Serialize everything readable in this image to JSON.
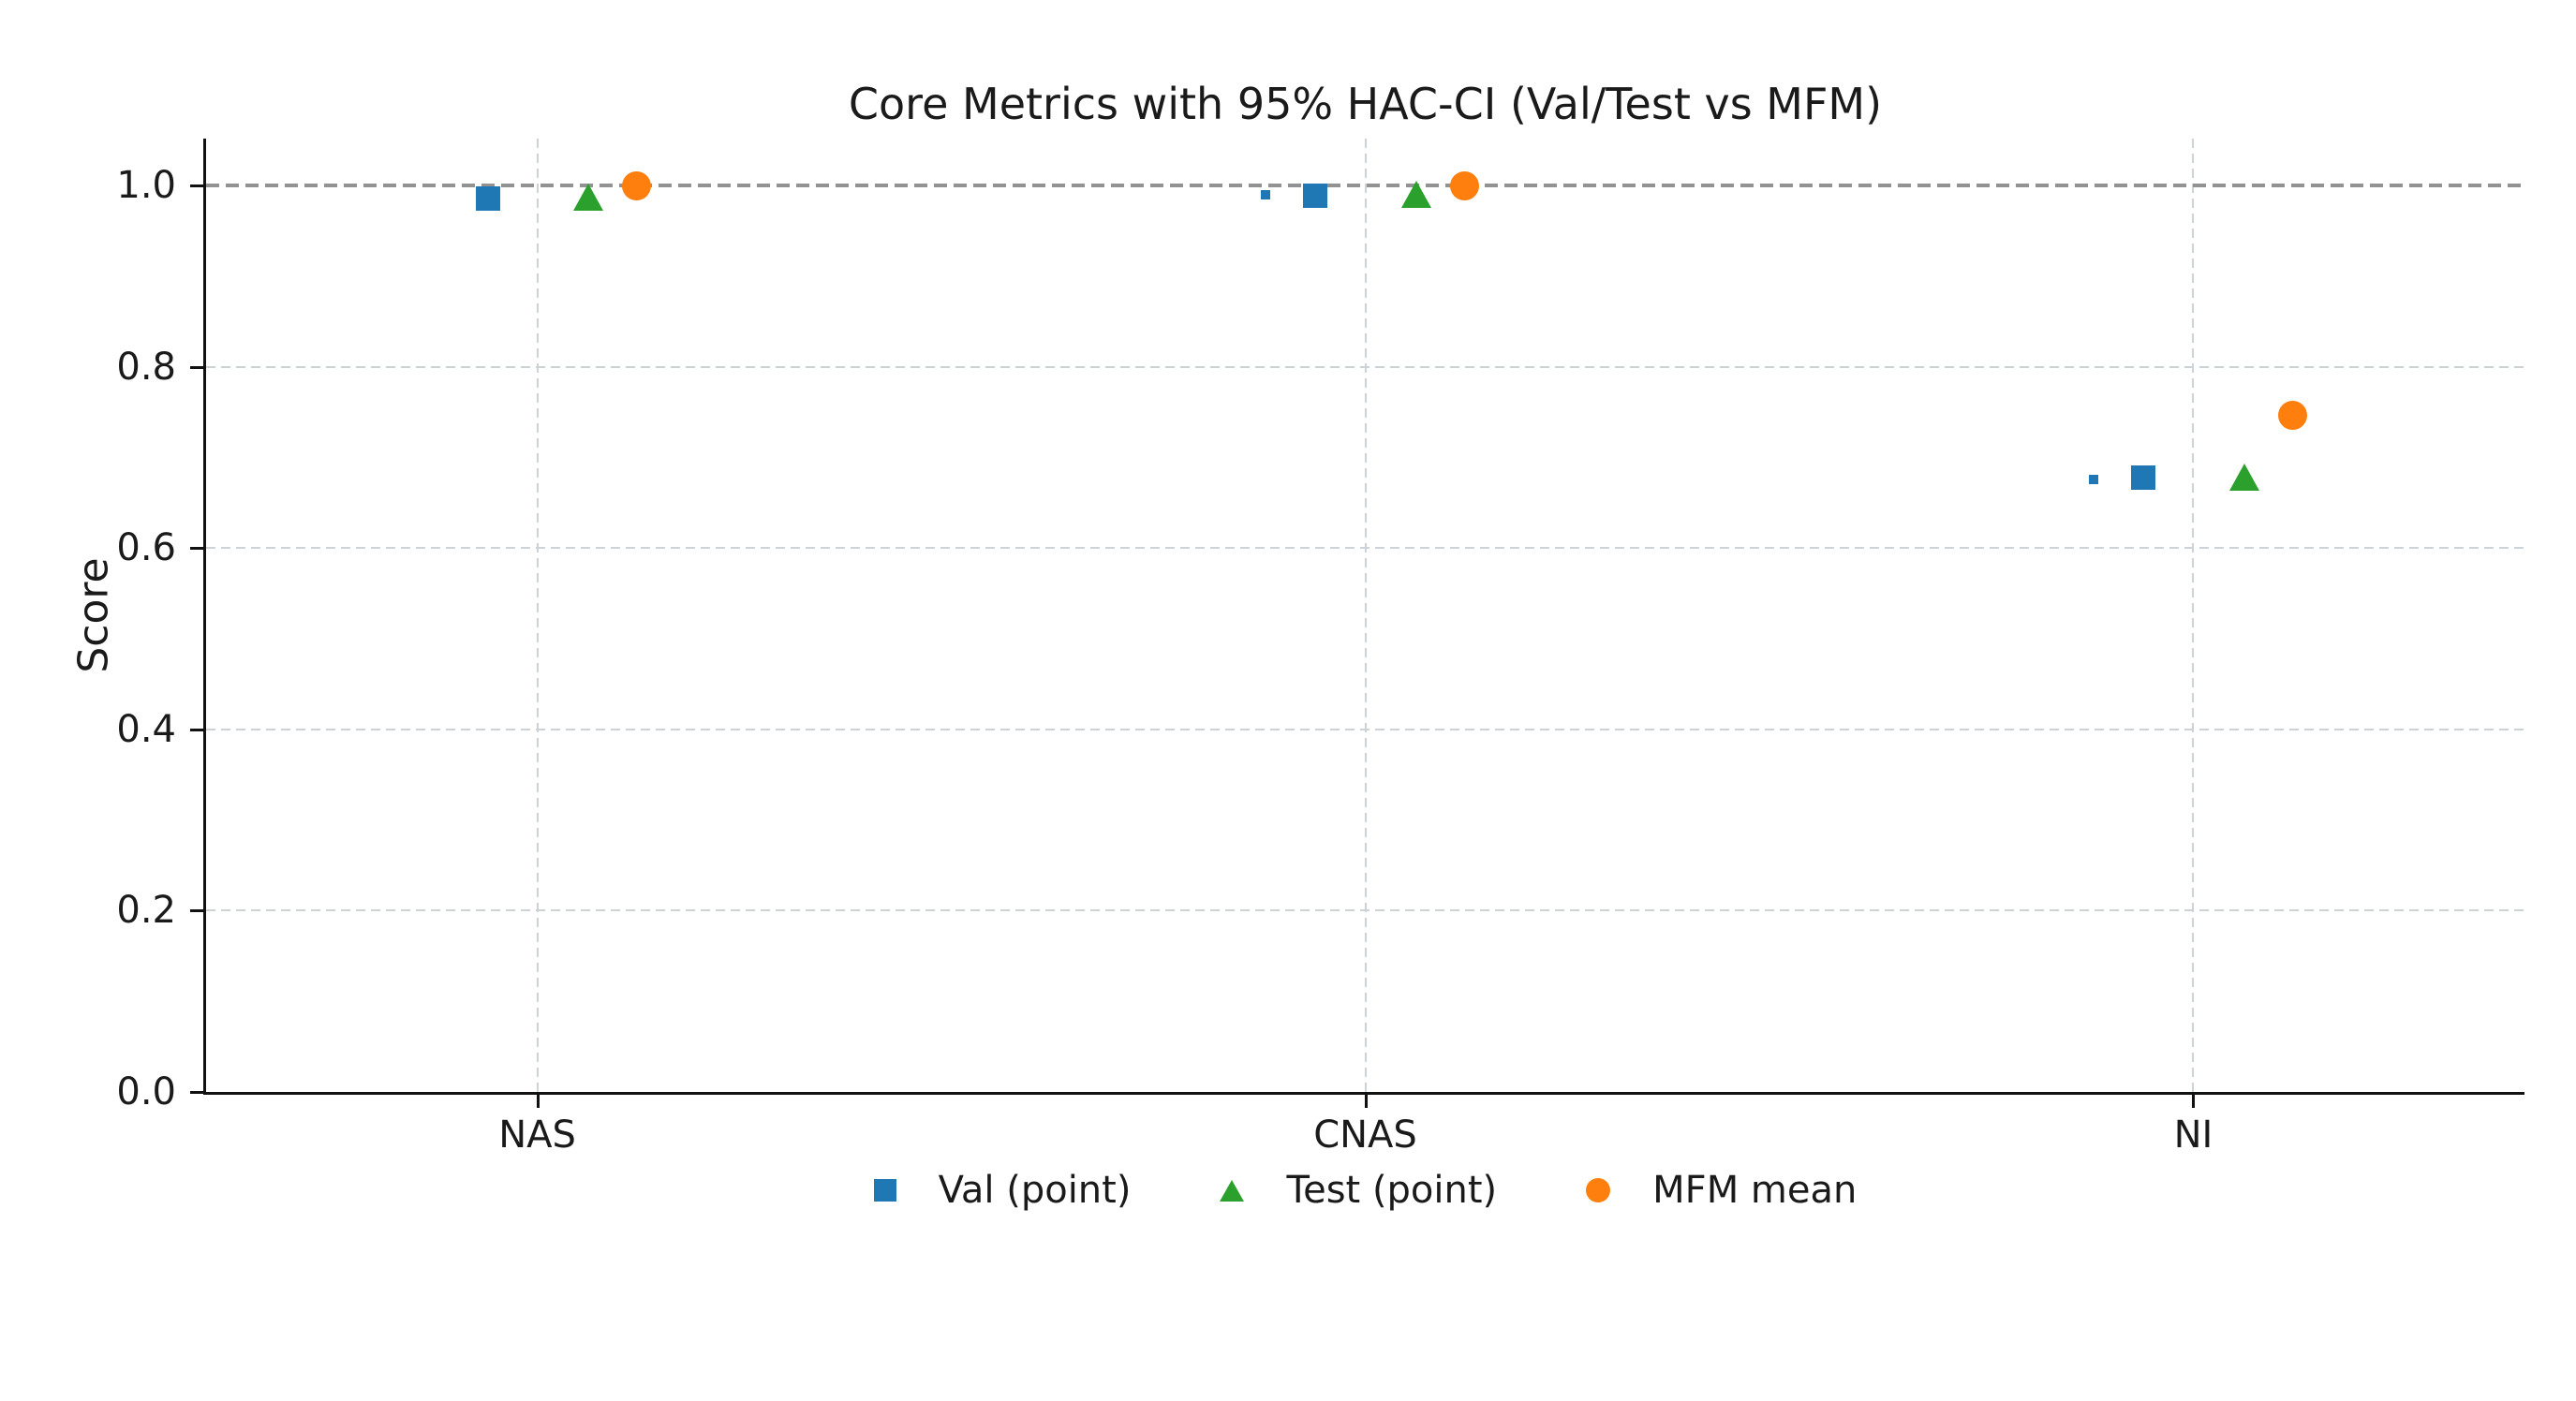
{
  "chart_data": {
    "type": "scatter",
    "title": "Core Metrics with 95% HAC-CI (Val/Test vs MFM)",
    "xlabel": "",
    "ylabel": "Score",
    "categories": [
      "NAS",
      "CNAS",
      "NI"
    ],
    "xlim": [
      -0.4,
      2.4
    ],
    "ylim": [
      0.0,
      1.052
    ],
    "yticks": [
      {
        "value": 0.0,
        "label": "0.0"
      },
      {
        "value": 0.2,
        "label": "0.2"
      },
      {
        "value": 0.4,
        "label": "0.4"
      },
      {
        "value": 0.6,
        "label": "0.6"
      },
      {
        "value": 0.8,
        "label": "0.8"
      },
      {
        "value": 1.0,
        "label": "1.0"
      }
    ],
    "grid": true,
    "grid_style": "dashed",
    "reference_line": {
      "y": 1.0,
      "style": "dashed",
      "color": "#929292"
    },
    "legend_position": "bottom-center",
    "series": [
      {
        "name": "Val CI marker",
        "in_legend": false,
        "marker": "square",
        "size": "small",
        "color": "#1f77b4",
        "x_offset": -0.12,
        "values": [
          null,
          0.99,
          0.676
        ]
      },
      {
        "name": "Val (point)",
        "in_legend": true,
        "marker": "square",
        "size": "large",
        "color": "#1f77b4",
        "x_offset": -0.06,
        "values": [
          0.986,
          0.989,
          0.678
        ]
      },
      {
        "name": "Test (point)",
        "in_legend": true,
        "marker": "triangle",
        "size": "large",
        "color": "#2ca02c",
        "x_offset": 0.062,
        "values": [
          0.987,
          0.99,
          0.678
        ]
      },
      {
        "name": "MFM mean",
        "in_legend": true,
        "marker": "circle",
        "size": "large",
        "color": "#ff7f0e",
        "x_offset": 0.12,
        "values": [
          1.0,
          1.0,
          0.747
        ]
      }
    ]
  }
}
